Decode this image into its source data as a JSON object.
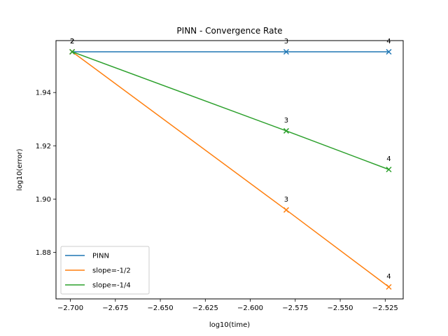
{
  "chart_data": {
    "type": "line",
    "title": "PINN - Convergence Rate",
    "xlabel": "log10(time)",
    "ylabel": "log10(error)",
    "xlim": [
      -2.708,
      -2.515
    ],
    "ylim": [
      1.8625,
      1.9595
    ],
    "x_ticks": [
      -2.7,
      -2.675,
      -2.65,
      -2.625,
      -2.6,
      -2.575,
      -2.55,
      -2.525
    ],
    "x_tick_labels": [
      "−2.700",
      "−2.675",
      "−2.650",
      "−2.625",
      "−2.600",
      "−2.575",
      "−2.550",
      "−2.525"
    ],
    "y_ticks": [
      1.88,
      1.9,
      1.92,
      1.94
    ],
    "y_tick_labels": [
      "1.88",
      "1.90",
      "1.92",
      "1.94"
    ],
    "grid": false,
    "legend_position": "lower-left",
    "series": [
      {
        "name": "PINN",
        "color": "#1f77b4",
        "x": [
          -2.699,
          -2.58,
          -2.523
        ],
        "y": [
          1.9553,
          1.9553,
          1.9553
        ],
        "labels": [
          "2",
          "3",
          "4"
        ]
      },
      {
        "name": "slope=-1/2",
        "color": "#ff7f0e",
        "x": [
          -2.699,
          -2.58,
          -2.523
        ],
        "y": [
          1.9553,
          1.8959,
          1.867
        ],
        "labels": [
          "2",
          "3",
          "4"
        ]
      },
      {
        "name": "slope=-1/4",
        "color": "#2ca02c",
        "x": [
          -2.699,
          -2.58,
          -2.523
        ],
        "y": [
          1.9553,
          1.9256,
          1.9111
        ],
        "labels": [
          "2",
          "3",
          "4"
        ]
      }
    ]
  }
}
